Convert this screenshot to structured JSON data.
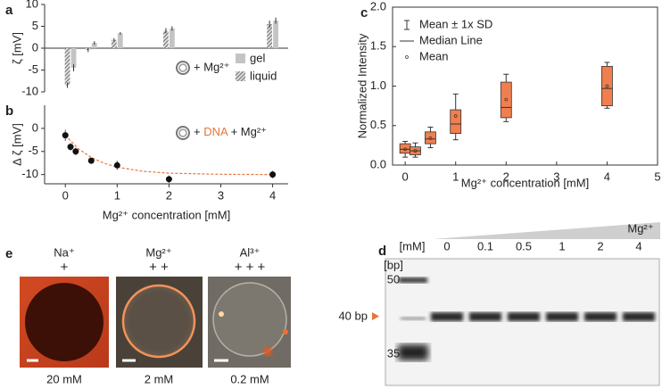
{
  "chart_data": [
    {
      "type": "bar",
      "panel_label": "a",
      "ylabel": "ζ [mV]",
      "xlim": [
        -0.4,
        4.3
      ],
      "ylim": [
        -10,
        10
      ],
      "yticks": [
        -10,
        -5,
        0,
        5,
        10
      ],
      "legend_label": "+ Mg²⁺",
      "series": [
        {
          "name": "gel",
          "color": "#c4c4c4",
          "x": [
            0.1,
            0.5,
            1,
            2,
            4
          ],
          "values": [
            -4.5,
            1.2,
            3.4,
            4.5,
            6.3
          ],
          "errors": [
            0.8,
            0.4,
            0.3,
            0.5,
            0.7
          ]
        },
        {
          "name": "liquid",
          "color": "#555555",
          "pattern": "hatch",
          "x": [
            0.1,
            0.5,
            1,
            2,
            4
          ],
          "values": [
            -8.5,
            -0.4,
            1.9,
            4.0,
            5.5
          ],
          "errors": [
            0.6,
            0.5,
            0.4,
            0.6,
            0.8
          ]
        }
      ]
    },
    {
      "type": "scatter",
      "panel_label": "b",
      "ylabel": "Δ ζ [mV]",
      "xlabel": "Mg²⁺ concentration [mM]",
      "xlim": [
        -0.4,
        4.3
      ],
      "xticks": [
        0,
        1,
        2,
        3,
        4
      ],
      "ylim": [
        -12,
        5
      ],
      "yticks": [
        -10,
        -5,
        0
      ],
      "legend_label": {
        "prefix": "+",
        "highlight": "DNA",
        "suffix": "+ Mg²⁺"
      },
      "highlight_color": "#e8743b",
      "color": "#111111",
      "x": [
        0,
        0.1,
        0.2,
        0.5,
        1,
        2,
        4
      ],
      "values": [
        -1.5,
        -4,
        -5,
        -7,
        -8,
        -11,
        -10
      ],
      "errors": [
        1.2,
        0.8,
        0.8,
        0.4,
        1.0,
        0.8,
        0.8
      ],
      "fit": {
        "color": "#e8743b",
        "x": [
          0,
          0.25,
          0.5,
          0.75,
          1,
          1.5,
          2,
          3,
          4
        ],
        "values": [
          -1.5,
          -4.4,
          -6.3,
          -7.56,
          -8.4,
          -9.3,
          -9.7,
          -9.94,
          -10.0
        ]
      }
    },
    {
      "type": "box",
      "panel_label": "c",
      "ylabel": "Normalized Intensity",
      "xlabel": "Mg²⁺ concentration [mM]",
      "xlim": [
        -0.25,
        5
      ],
      "xticks": [
        0,
        1,
        2,
        3,
        4,
        5
      ],
      "ylim": [
        0,
        2
      ],
      "yticks": [
        {
          "value": 0,
          "label": "0.0"
        },
        0.5,
        {
          "value": 1,
          "label": "1.0"
        },
        1.5,
        {
          "value": 2,
          "label": "2.0"
        }
      ],
      "color": "#f07f4f",
      "legend": [
        "Mean ± 1x SD",
        "Median Line",
        "Mean"
      ],
      "boxes": {
        "x": [
          0,
          0.2,
          0.5,
          1,
          2,
          4
        ],
        "whisker_low": [
          0.1,
          0.1,
          0.22,
          0.32,
          0.55,
          0.72
        ],
        "q1": [
          0.15,
          0.13,
          0.27,
          0.4,
          0.6,
          0.75
        ],
        "median": [
          0.2,
          0.18,
          0.33,
          0.52,
          0.73,
          0.97
        ],
        "q3": [
          0.27,
          0.23,
          0.42,
          0.7,
          1.05,
          1.25
        ],
        "whisker_high": [
          0.3,
          0.28,
          0.48,
          0.9,
          1.15,
          1.3
        ],
        "mean": [
          0.2,
          0.18,
          0.34,
          0.62,
          0.83,
          1.0
        ]
      }
    }
  ],
  "panel_d": {
    "label": "d",
    "unit": "[mM]",
    "concentrations": [
      "0",
      "0.1",
      "0.5",
      "1",
      "2",
      "4"
    ],
    "ion": "Mg²⁺",
    "bp_unit": "[bp]",
    "ladder": [
      "50",
      "40 bp",
      "35"
    ]
  },
  "panel_e": {
    "label": "e",
    "ions": [
      {
        "name": "Na⁺",
        "charge": "+",
        "concentration": "20 mM"
      },
      {
        "name": "Mg²⁺",
        "charge": "+ +",
        "concentration": "2 mM"
      },
      {
        "name": "Al³⁺",
        "charge": "+ + +",
        "concentration": "0.2 mM"
      }
    ]
  }
}
